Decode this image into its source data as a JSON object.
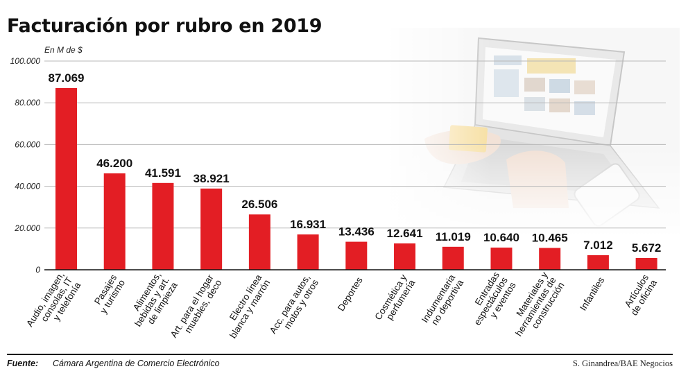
{
  "title": "Facturación por rubro en 2019",
  "unit_note": "En M de $",
  "source_label": "Fuente:",
  "source_text": "Cámara Argentina de Comercio Electrónico",
  "credit": "S. Ginandrea/BAE Negocios",
  "colors": {
    "bar": "#e31e24",
    "grid": "#b8b8b8",
    "axis": "#111111"
  },
  "illustration": "laptop-with-hand-holding-credit-card-photo",
  "chart_data": {
    "type": "bar",
    "title": "Facturación por rubro en 2019",
    "ylabel": "En M de $",
    "ylim": [
      0,
      100000
    ],
    "yticks": [
      0,
      20000,
      40000,
      60000,
      80000,
      100000
    ],
    "ytick_labels": [
      "0",
      "20.000",
      "40.000",
      "60.000",
      "80.000",
      "100.000"
    ],
    "grid": true,
    "categories": [
      [
        "Audio, imagen,",
        "consolas, IT",
        "y telefonía"
      ],
      [
        "Pasajes",
        "y turismo"
      ],
      [
        "Alimentos,",
        "bebidas y art.",
        "de limpieza"
      ],
      [
        "Art. para el hogar",
        "muebles, deco"
      ],
      [
        "Electro línea",
        "blanca y marrón"
      ],
      [
        "Acc. para autos,",
        "motos y otros"
      ],
      [
        "Deportes"
      ],
      [
        "Cosmética y",
        "perfumería"
      ],
      [
        "Indumentaria",
        "no deportiva"
      ],
      [
        "Entradas",
        "espectáculos",
        "y eventos"
      ],
      [
        "Materiales y",
        "herramientas de",
        "construcción"
      ],
      [
        "Infantiles"
      ],
      [
        "Artículos",
        "de oficina"
      ]
    ],
    "values": [
      87069,
      46200,
      41591,
      38921,
      26506,
      16931,
      13436,
      12641,
      11019,
      10640,
      10465,
      7012,
      5672
    ],
    "value_labels": [
      "87.069",
      "46.200",
      "41.591",
      "38.921",
      "26.506",
      "16.931",
      "13.436",
      "12.641",
      "11.019",
      "10.640",
      "10.465",
      "7.012",
      "5.672"
    ]
  }
}
